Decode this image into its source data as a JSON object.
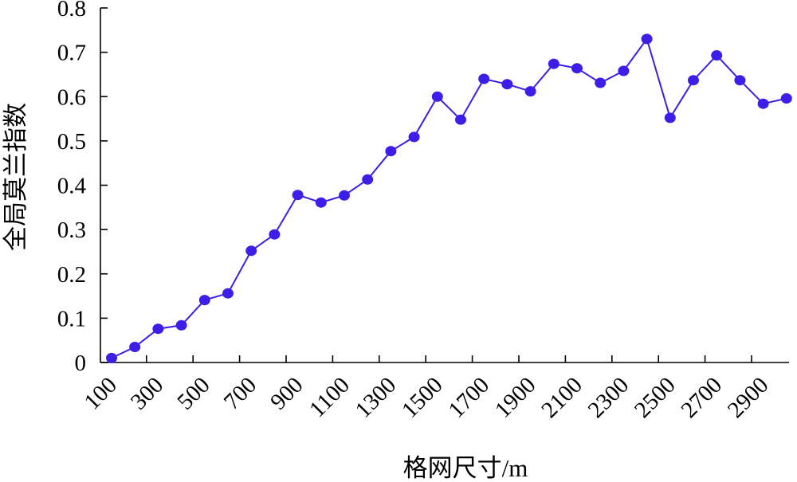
{
  "chart_data": {
    "type": "line",
    "xlabel": "格网尺寸/m",
    "ylabel": "全局莫兰指数",
    "ylim": [
      0,
      0.8
    ],
    "yticks": [
      "0",
      "0.1",
      "0.2",
      "0.3",
      "0.4",
      "0.5",
      "0.6",
      "0.7",
      "0.8"
    ],
    "xticks": [
      "100",
      "300",
      "500",
      "700",
      "900",
      "1100",
      "1300",
      "1500",
      "1700",
      "1900",
      "2100",
      "2300",
      "2500",
      "2700",
      "2900"
    ],
    "x": [
      100,
      200,
      300,
      400,
      500,
      600,
      700,
      800,
      900,
      1000,
      1100,
      1200,
      1300,
      1400,
      1500,
      1600,
      1700,
      1800,
      1900,
      2000,
      2100,
      2200,
      2300,
      2400,
      2500,
      2600,
      2700,
      2800,
      2900,
      3000
    ],
    "series": [
      {
        "values": [
          0.01,
          0.035,
          0.076,
          0.084,
          0.141,
          0.156,
          0.252,
          0.289,
          0.378,
          0.361,
          0.377,
          0.413,
          0.477,
          0.509,
          0.6,
          0.548,
          0.64,
          0.628,
          0.612,
          0.674,
          0.664,
          0.631,
          0.658,
          0.73,
          0.552,
          0.637,
          0.693,
          0.637,
          0.584,
          0.596
        ],
        "color": "#3b1ee8"
      }
    ],
    "grid": false,
    "legend": "none"
  }
}
